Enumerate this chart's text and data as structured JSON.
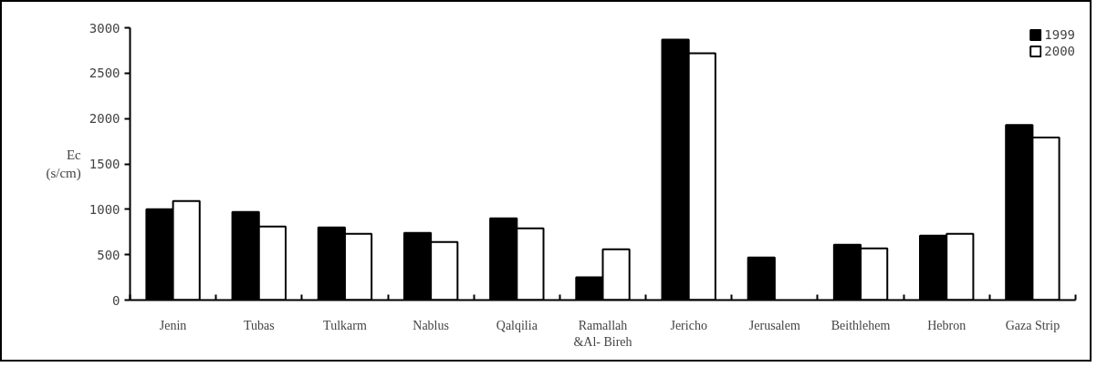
{
  "chart_data": {
    "type": "bar",
    "ylabel": "Ec\n(s/cm)",
    "categories": [
      "Jenin",
      "Tubas",
      "Tulkarm",
      "Nablus",
      "Qalqilia",
      "Ramallah\n&Al- Bireh",
      "Jericho",
      "Jerusalem",
      "Beithlehem",
      "Hebron",
      "Gaza Strip"
    ],
    "series": [
      {
        "name": "1999",
        "color": "#000000",
        "values": [
          1000,
          970,
          800,
          740,
          900,
          250,
          2870,
          470,
          610,
          710,
          1930
        ]
      },
      {
        "name": "2000",
        "color": "#ffffff",
        "values": [
          1090,
          810,
          730,
          640,
          790,
          560,
          2720,
          null,
          570,
          730,
          1790
        ]
      }
    ],
    "ylim": [
      0,
      3000
    ],
    "yticks": [
      0,
      500,
      1000,
      1500,
      2000,
      2500,
      3000
    ],
    "grid": false,
    "legend": "top right"
  }
}
